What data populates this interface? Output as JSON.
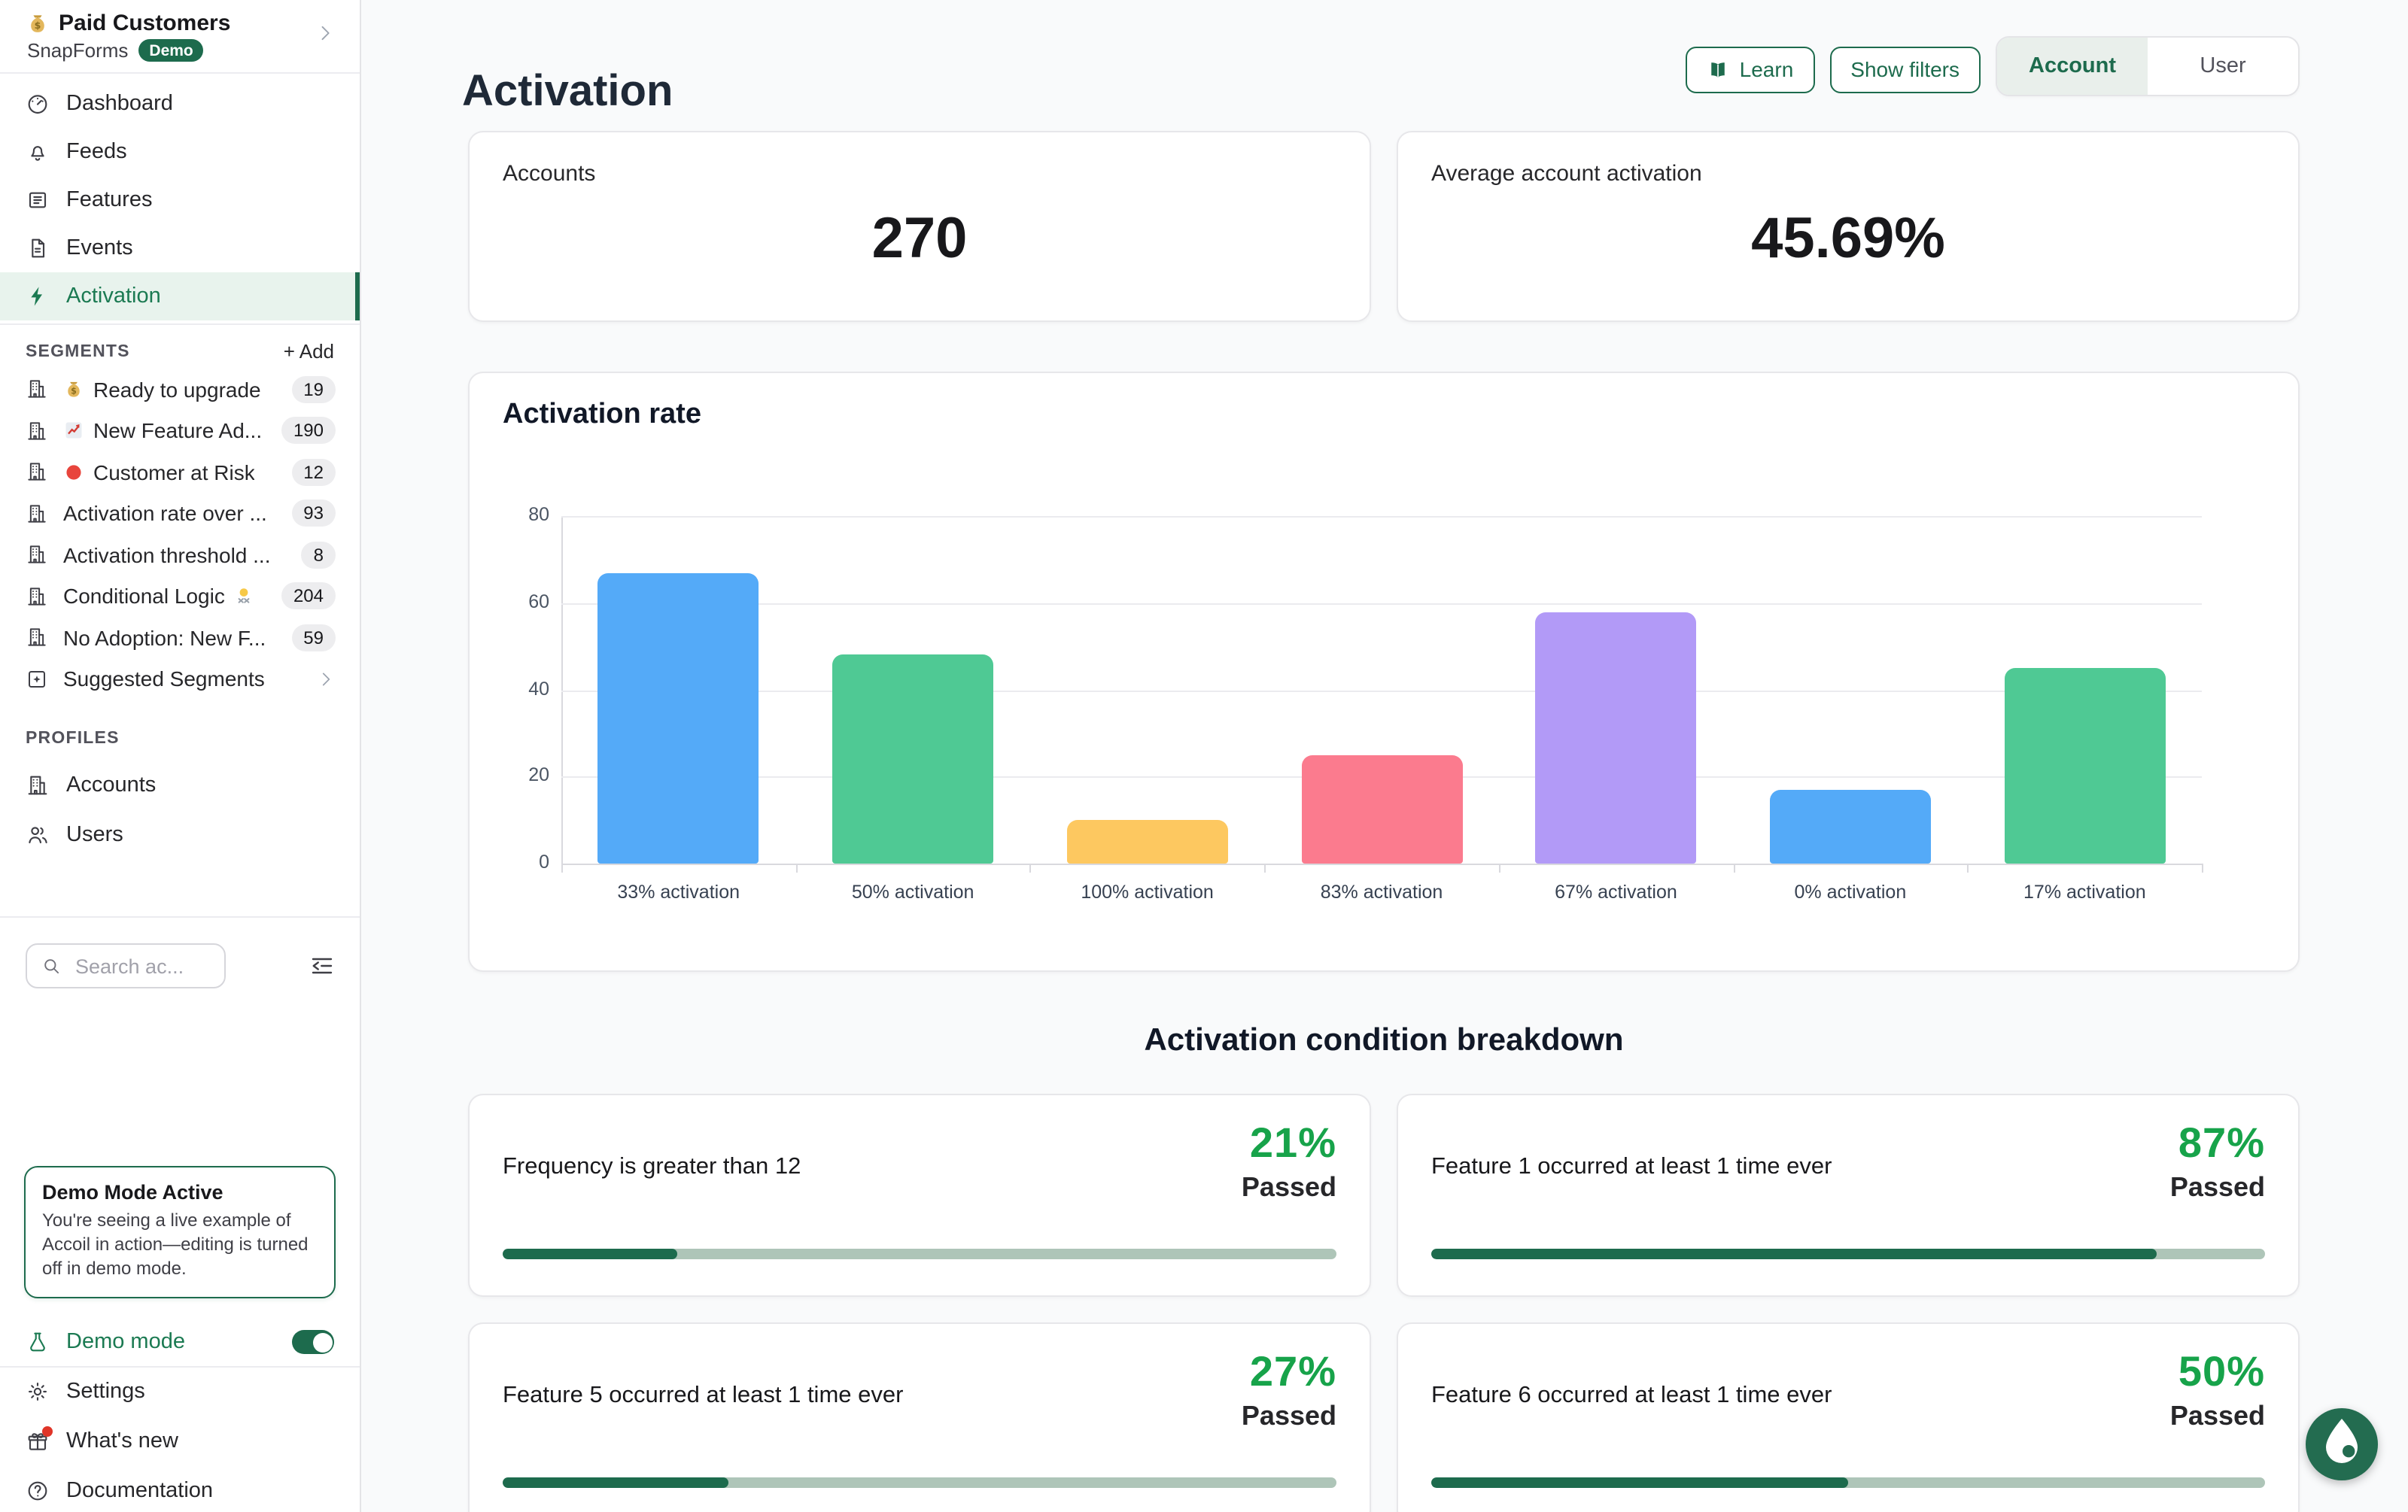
{
  "sidebar": {
    "workspace": {
      "icon": "money-bag",
      "name": "Paid Customers",
      "org": "SnapForms",
      "badge": "Demo"
    },
    "nav": [
      {
        "label": "Dashboard",
        "icon": "gauge",
        "active": false
      },
      {
        "label": "Feeds",
        "icon": "bell",
        "active": false
      },
      {
        "label": "Features",
        "icon": "features",
        "active": false
      },
      {
        "label": "Events",
        "icon": "file",
        "active": false
      },
      {
        "label": "Activation",
        "icon": "bolt",
        "active": true
      }
    ],
    "segments": {
      "title": "SEGMENTS",
      "add_label": "+ Add",
      "items": [
        {
          "icon": "building",
          "emoji": "money-bag",
          "label": "Ready to upgrade",
          "count": "19"
        },
        {
          "icon": "building",
          "emoji": "chart-up",
          "label": "New Feature Ad...",
          "count": "190"
        },
        {
          "icon": "building",
          "emoji": "red-circle",
          "label": "Customer at Risk",
          "count": "12"
        },
        {
          "icon": "building",
          "emoji": null,
          "label": "Activation rate over ...",
          "count": "93"
        },
        {
          "icon": "building",
          "emoji": null,
          "label": "Activation threshold ...",
          "count": "8"
        },
        {
          "icon": "building",
          "emoji": null,
          "label": "Conditional Logic",
          "emoji_after": "shrug",
          "count": "204"
        },
        {
          "icon": "building",
          "emoji": null,
          "label": "No Adoption: New F...",
          "count": "59"
        }
      ],
      "suggested": {
        "icon": "sparkle-square",
        "label": "Suggested Segments"
      }
    },
    "profiles": {
      "title": "PROFILES",
      "items": [
        {
          "icon": "building",
          "label": "Accounts"
        },
        {
          "icon": "users",
          "label": "Users"
        }
      ]
    },
    "search": {
      "placeholder": "Search ac..."
    },
    "demo_banner": {
      "title": "Demo Mode Active",
      "body": "You're seeing a live example of Accoil in action—editing is turned off in demo mode."
    },
    "demo_mode": {
      "label": "Demo mode",
      "enabled": true
    },
    "footer": [
      {
        "icon": "gear",
        "label": "Settings",
        "has_dot": false
      },
      {
        "icon": "gift",
        "label": "What's new",
        "has_dot": true
      },
      {
        "icon": "help",
        "label": "Documentation",
        "has_dot": false
      }
    ]
  },
  "header": {
    "title": "Activation",
    "learn_label": "Learn",
    "show_filters_label": "Show filters",
    "view_toggle": {
      "options": [
        "Account",
        "User"
      ],
      "selected": "Account"
    }
  },
  "stats": [
    {
      "label": "Accounts",
      "value": "270"
    },
    {
      "label": "Average account activation",
      "value": "45.69%"
    }
  ],
  "chart_data": {
    "type": "bar",
    "title": "Activation rate",
    "categories": [
      "33% activation",
      "50% activation",
      "100% activation",
      "83% activation",
      "67% activation",
      "0% activation",
      "17% activation"
    ],
    "values": [
      67,
      48,
      10,
      25,
      58,
      17,
      45
    ],
    "bar_colors": [
      "#54aaf8",
      "#4fc994",
      "#fdc860",
      "#fb7b8e",
      "#b29af7",
      "#54aaf8",
      "#4fc994"
    ],
    "xlabel": "",
    "ylabel": "",
    "ylim": [
      0,
      80
    ],
    "yticks": [
      0,
      20,
      40,
      60,
      80
    ],
    "grid": true,
    "legend": false
  },
  "breakdown": {
    "title": "Activation condition breakdown",
    "passed_label": "Passed",
    "cards": [
      {
        "label": "Frequency is greater than 12",
        "percent": 21
      },
      {
        "label": "Feature 1 occurred at least 1 time ever",
        "percent": 87
      },
      {
        "label": "Feature 5 occurred at least 1 time ever",
        "percent": 27
      },
      {
        "label": "Feature 6 occurred at least 1 time ever",
        "percent": 50
      }
    ]
  },
  "colors": {
    "accent_green": "#1d6b4d",
    "bright_green": "#17a34a",
    "progress_track": "#aec5b8",
    "active_nav_bg": "#e8f3ed"
  }
}
